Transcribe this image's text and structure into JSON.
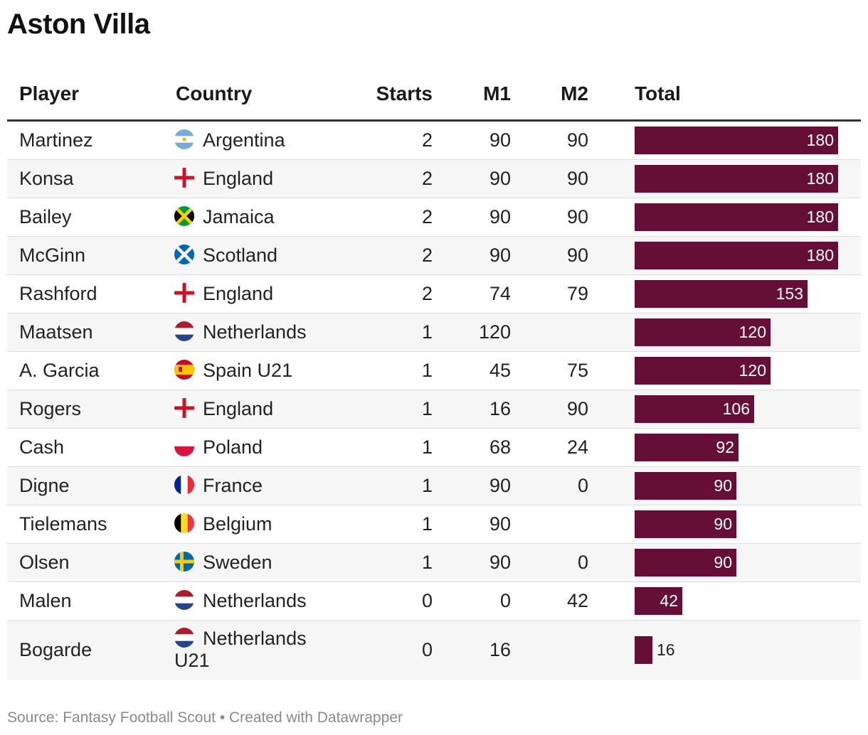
{
  "title": "Aston Villa",
  "columns": {
    "player": "Player",
    "country": "Country",
    "starts": "Starts",
    "m1": "M1",
    "m2": "M2",
    "total": "Total"
  },
  "footer": "Source: Fantasy Football Scout • Created with Datawrapper",
  "colors": {
    "bar": "#660f36",
    "header_rule": "#333333",
    "row_alt": "#f6f6f6"
  },
  "chart_data": {
    "type": "table",
    "title": "Aston Villa",
    "value_column": "Total",
    "xlim": [
      0,
      180
    ],
    "rows": [
      {
        "player": "Martinez",
        "country": "Argentina",
        "flag": "argentina-flag-icon",
        "starts": "2",
        "m1": "90",
        "m2": "90",
        "total": 180
      },
      {
        "player": "Konsa",
        "country": "England",
        "flag": "england-flag-icon",
        "starts": "2",
        "m1": "90",
        "m2": "90",
        "total": 180
      },
      {
        "player": "Bailey",
        "country": "Jamaica",
        "flag": "jamaica-flag-icon",
        "starts": "2",
        "m1": "90",
        "m2": "90",
        "total": 180
      },
      {
        "player": "McGinn",
        "country": "Scotland",
        "flag": "scotland-flag-icon",
        "starts": "2",
        "m1": "90",
        "m2": "90",
        "total": 180
      },
      {
        "player": "Rashford",
        "country": "England",
        "flag": "england-flag-icon",
        "starts": "2",
        "m1": "74",
        "m2": "79",
        "total": 153
      },
      {
        "player": "Maatsen",
        "country": "Netherlands",
        "flag": "netherlands-flag-icon",
        "starts": "1",
        "m1": "120",
        "m2": "",
        "total": 120
      },
      {
        "player": "A. Garcia",
        "country": "Spain U21",
        "flag": "spain-flag-icon",
        "starts": "1",
        "m1": "45",
        "m2": "75",
        "total": 120
      },
      {
        "player": "Rogers",
        "country": "England",
        "flag": "england-flag-icon",
        "starts": "1",
        "m1": "16",
        "m2": "90",
        "total": 106
      },
      {
        "player": "Cash",
        "country": "Poland",
        "flag": "poland-flag-icon",
        "starts": "1",
        "m1": "68",
        "m2": "24",
        "total": 92
      },
      {
        "player": "Digne",
        "country": "France",
        "flag": "france-flag-icon",
        "starts": "1",
        "m1": "90",
        "m2": "0",
        "total": 90
      },
      {
        "player": "Tielemans",
        "country": "Belgium",
        "flag": "belgium-flag-icon",
        "starts": "1",
        "m1": "90",
        "m2": "",
        "total": 90
      },
      {
        "player": "Olsen",
        "country": "Sweden",
        "flag": "sweden-flag-icon",
        "starts": "1",
        "m1": "90",
        "m2": "0",
        "total": 90
      },
      {
        "player": "Malen",
        "country": "Netherlands",
        "flag": "netherlands-flag-icon",
        "starts": "0",
        "m1": "0",
        "m2": "42",
        "total": 42
      },
      {
        "player": "Bogarde",
        "country": "Netherlands U21",
        "flag": "netherlands-flag-icon",
        "starts": "0",
        "m1": "16",
        "m2": "",
        "total": 16
      }
    ]
  }
}
